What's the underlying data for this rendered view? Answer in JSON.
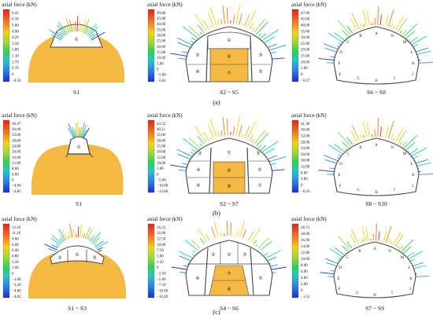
{
  "title": "axial force (kN)",
  "rows": [
    {
      "label": "(a)",
      "panels": [
        {
          "stage": "S1",
          "ticks": [
            "6.42",
            "6.30",
            "5.60",
            "4.90",
            "4.20",
            "3.50",
            "2.80",
            "2.10",
            "1.70",
            "0.70",
            "0",
            "−0.59"
          ],
          "regions": [
            "①"
          ]
        },
        {
          "stage": "S2 ~ S5",
          "ticks": [
            "49.88",
            "45.00",
            "40.00",
            "35.00",
            "30.00",
            "25.00",
            "20.00",
            "15.00",
            "10.00",
            "5.00",
            "0",
            "−5.00",
            "−5.83"
          ],
          "regions": [
            "①",
            "②",
            "③",
            "④",
            "⑤",
            "⑥",
            "⑦"
          ]
        },
        {
          "stage": "S6 ~ S8",
          "ticks": [
            "47.09",
            "45.00",
            "40.00",
            "35.00",
            "30.00",
            "25.00",
            "20.00",
            "15.00",
            "10.00",
            "5.00",
            "0",
            "−0.57"
          ],
          "points": [
            "A",
            "B",
            "C",
            "D",
            "E",
            "F",
            "G",
            "H",
            "I",
            "J",
            "K",
            "L",
            "M",
            "N"
          ]
        }
      ]
    },
    {
      "label": "(b)",
      "panels": [
        {
          "stage": "S1",
          "ticks": [
            "38.47",
            "36.00",
            "32.00",
            "28.00",
            "24.00",
            "20.00",
            "16.00",
            "12.00",
            "8.00",
            "4.00",
            "0",
            "−4.00",
            "−4.85"
          ],
          "regions": [
            "①"
          ]
        },
        {
          "stage": "S2 ~ S7",
          "ticks": [
            "42.52",
            "40.11",
            "35.00",
            "30.00",
            "25.00",
            "20.00",
            "15.00",
            "10.00",
            "5.00",
            "0",
            "−5.00",
            "−10.00",
            "−14.06"
          ],
          "regions": [
            "①",
            "②",
            "③",
            "④",
            "⑤",
            "⑥",
            "⑦",
            "⑧",
            "⑨"
          ]
        },
        {
          "stage": "S8 ~ S10",
          "ticks": [
            "41.38",
            "36.00",
            "32.00",
            "28.00",
            "24.00",
            "20.00",
            "16.00",
            "12.00",
            "8.00",
            "4.00",
            "0",
            "−0.16"
          ],
          "points": [
            "A",
            "B",
            "C",
            "D",
            "E",
            "F",
            "G",
            "H",
            "I",
            "J",
            "K",
            "L",
            "M",
            "N"
          ]
        }
      ]
    },
    {
      "label": "(c)",
      "panels": [
        {
          "stage": "S1 ~ S3",
          "ticks": [
            "12.10",
            "11.20",
            "9.60",
            "8.00",
            "6.40",
            "4.80",
            "3.20",
            "1.60",
            "0",
            "−1.60",
            "−3.20",
            "−4.80",
            "−4.82"
          ],
          "regions": [
            "②",
            "①",
            "③"
          ]
        },
        {
          "stage": "S4 ~ S6",
          "ticks": [
            "16.22",
            "15.00",
            "12.50",
            "10.00",
            "7.50",
            "5.00",
            "2.50",
            "0",
            "−2.50",
            "−5.00",
            "−7.50",
            "−10.00",
            "−10.20"
          ],
          "regions": [
            "①",
            "②",
            "③",
            "④",
            "⑤",
            "⑦",
            "⑧"
          ]
        },
        {
          "stage": "S7 ~ S9",
          "ticks": [
            "18.73",
            "18.00",
            "16.00",
            "14.00",
            "12.00",
            "10.00",
            "8.00",
            "6.00",
            "4.00",
            "2.00",
            "0",
            "−1.51"
          ],
          "points": [
            "A",
            "B",
            "C",
            "D",
            "E",
            "F",
            "G",
            "H",
            "I",
            "J",
            "K",
            "L",
            "M",
            "N"
          ]
        }
      ]
    }
  ]
}
